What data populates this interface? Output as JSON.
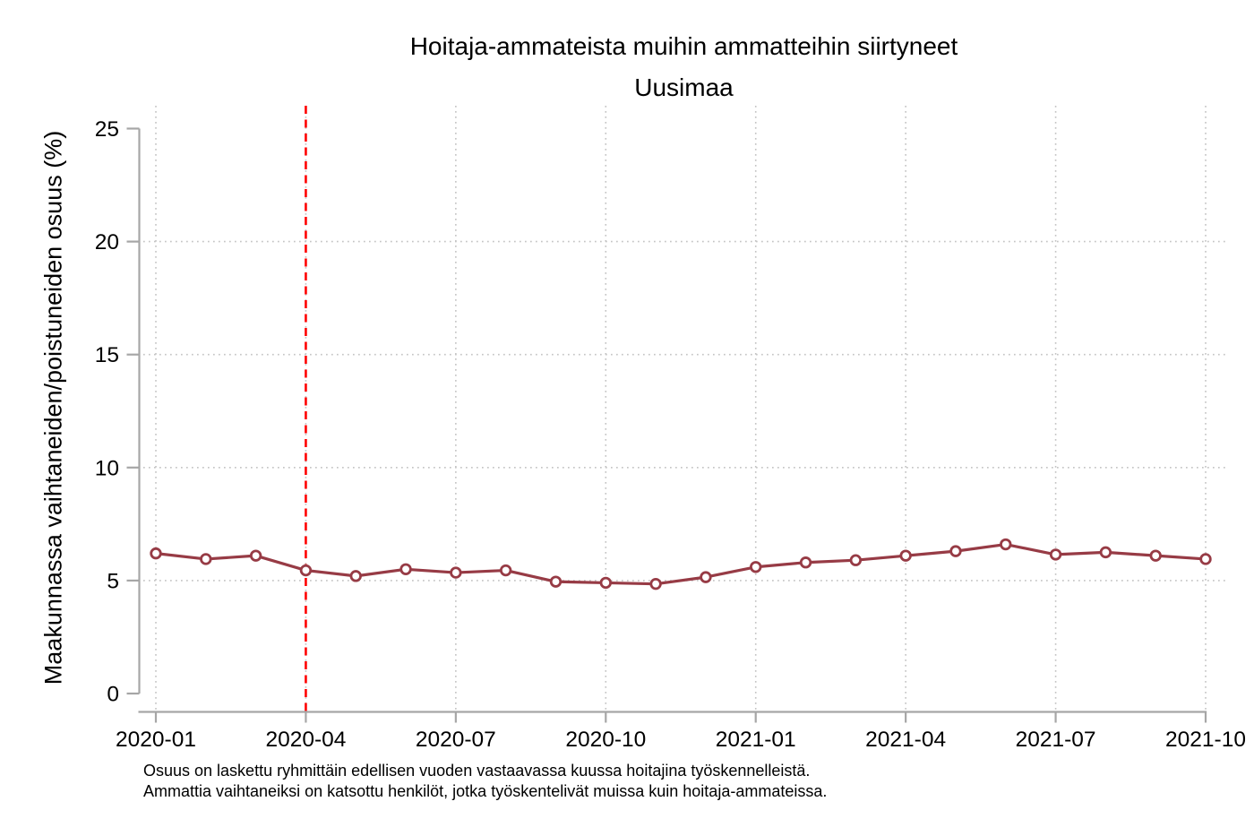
{
  "header": {
    "title": "Hoitaja-ammateista muihin ammatteihin siirtyneet",
    "subtitle": "Uusimaa"
  },
  "notes": {
    "line1": "Osuus on laskettu ryhmittäin edellisen vuoden vastaavassa kuussa hoitajina työskennelleistä.",
    "line2": "Ammattia vaihtaneiksi on katsottu henkilöt, jotka työskentelivät muissa kuin hoitaja-ammateissa."
  },
  "chart_data": {
    "type": "line",
    "title": "Hoitaja-ammateista muihin ammatteihin siirtyneet",
    "subtitle": "Uusimaa",
    "ylabel": "Maakunnassa vaihtaneiden/poistuneiden osuus (%)",
    "xlabel": "",
    "x": [
      "2020-01",
      "2020-02",
      "2020-03",
      "2020-04",
      "2020-05",
      "2020-06",
      "2020-07",
      "2020-08",
      "2020-09",
      "2020-10",
      "2020-11",
      "2020-12",
      "2021-01",
      "2021-02",
      "2021-03",
      "2021-04",
      "2021-05",
      "2021-06",
      "2021-07",
      "2021-08",
      "2021-09",
      "2021-10"
    ],
    "series": [
      {
        "name": "Uusimaa",
        "values": [
          6.2,
          5.95,
          6.1,
          5.45,
          5.2,
          5.5,
          5.35,
          5.45,
          4.95,
          4.9,
          4.85,
          5.15,
          5.6,
          5.8,
          5.9,
          6.1,
          6.3,
          6.6,
          6.15,
          6.25,
          6.1,
          5.95
        ]
      }
    ],
    "ylim": [
      0,
      25
    ],
    "y_ticks": [
      0,
      5,
      10,
      15,
      20,
      25
    ],
    "x_tick_labels": [
      "2020-01",
      "2020-04",
      "2020-07",
      "2020-10",
      "2021-01",
      "2021-04",
      "2021-07",
      "2021-10"
    ],
    "h_gridline_ticks": [
      5,
      10,
      15,
      20
    ],
    "grid": "dotted",
    "legend": "none",
    "vline": {
      "x": "2020-04",
      "style": "dashed",
      "color": "#ff0000"
    },
    "colors": {
      "series": "#973b45",
      "marker_fill": "#ffffff",
      "axis": "#a6a6a6",
      "grid": "#c4c4c4",
      "text": "#000000"
    }
  }
}
